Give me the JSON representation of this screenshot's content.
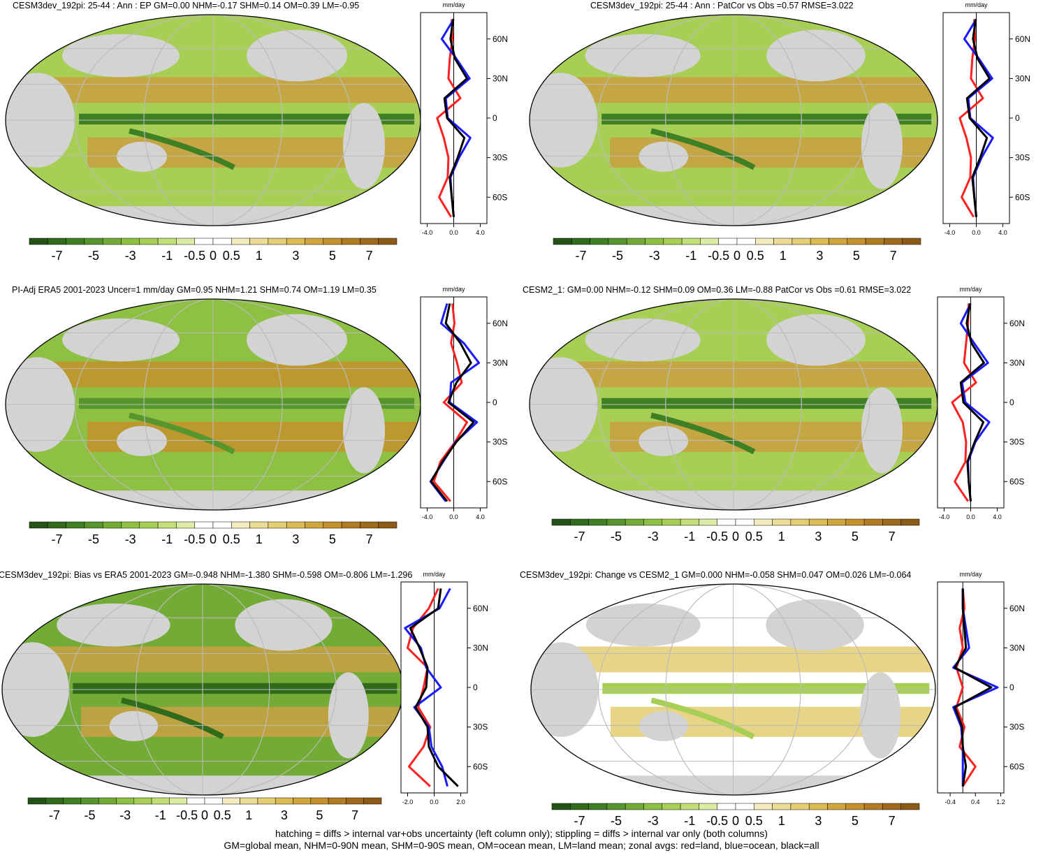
{
  "colorbar": {
    "labels": [
      "-7",
      "-5",
      "-3",
      "-1",
      "-0.5",
      "0",
      "0.5",
      "1",
      "3",
      "5",
      "7"
    ],
    "colors": [
      "#245415",
      "#2f6b1b",
      "#3f8024",
      "#57962d",
      "#73ab37",
      "#8ec043",
      "#a8cf55",
      "#c3df77",
      "#ddeca4",
      "#ffffff",
      "#ffffff",
      "#f4ecbf",
      "#ecdd96",
      "#e4cd72",
      "#dcbb52",
      "#d0a63c",
      "#c4912c",
      "#b27c22",
      "#9f6a1b",
      "#8b5a16"
    ]
  },
  "zonal_units": "mm/day",
  "lat_labels": [
    "60N",
    "30N",
    "0",
    "30S",
    "60S"
  ],
  "line_colors": {
    "land": "#ff2020",
    "ocean": "#1a1aff",
    "all": "#000000"
  },
  "panels": [
    {
      "title": "CESM3dev_192pi: 25-44 : Ann : EP GM=0.00 NHM=-0.17 SHM=0.14 OM=0.39 LM=-0.95",
      "zonal_ticks": [
        "-4.0",
        "0.0",
        "4.0"
      ],
      "chart_data": {
        "type": "line",
        "x_label": "mm/day",
        "y": [
          75,
          60,
          45,
          30,
          15,
          0,
          -15,
          -30,
          -45,
          -60,
          -75
        ],
        "xlim": [
          -5,
          5
        ],
        "series": [
          {
            "name": "land",
            "values": [
              -0.3,
              -0.2,
              -0.6,
              -0.8,
              1.0,
              -2.5,
              -1.5,
              -0.8,
              -0.9,
              -2.2,
              -0.4
            ]
          },
          {
            "name": "ocean",
            "values": [
              0,
              -1.8,
              0.4,
              2.4,
              -1.2,
              -0.9,
              2.5,
              0.8,
              -0.5,
              -0.3,
              0
            ]
          },
          {
            "name": "all",
            "values": [
              -0.1,
              -0.5,
              0.2,
              2.0,
              -1.4,
              -1.0,
              1.6,
              0.6,
              -0.6,
              -0.3,
              0
            ]
          }
        ]
      }
    },
    {
      "title": "CESM3dev_192pi: 25-44 : Ann : PatCor vs Obs =0.57 RMSE=3.022",
      "zonal_ticks": [
        "-4.0",
        "0.0",
        "4.0"
      ],
      "chart_data": {
        "type": "line",
        "x_label": "mm/day",
        "y": [
          75,
          60,
          45,
          30,
          15,
          0,
          -15,
          -30,
          -45,
          -60,
          -75
        ],
        "xlim": [
          -5,
          5
        ],
        "series": [
          {
            "name": "land",
            "values": [
              -0.3,
              -0.2,
              -0.6,
              -0.8,
              1.0,
              -2.5,
              -1.5,
              -0.8,
              -0.9,
              -2.2,
              -0.4
            ]
          },
          {
            "name": "ocean",
            "values": [
              0,
              -1.8,
              0.4,
              2.4,
              -1.2,
              -0.9,
              2.5,
              0.8,
              -0.5,
              -0.3,
              0
            ]
          },
          {
            "name": "all",
            "values": [
              -0.1,
              -0.5,
              0.2,
              2.0,
              -1.4,
              -1.0,
              1.6,
              0.6,
              -0.6,
              -0.3,
              0
            ]
          }
        ]
      }
    },
    {
      "title": "PI-Adj ERA5 2001-2023 Uncer=1 mm/day GM=0.95 NHM=1.21 SHM=0.74 OM=1.19 LM=0.35",
      "zonal_ticks": [
        "-4.0",
        "0.0",
        "4.0"
      ],
      "chart_data": {
        "type": "line",
        "x_label": "mm/day",
        "y": [
          75,
          60,
          45,
          30,
          15,
          0,
          -15,
          -30,
          -45,
          -60,
          -75
        ],
        "xlim": [
          -5,
          5
        ],
        "series": [
          {
            "name": "land",
            "values": [
              -0.2,
              0.1,
              -0.4,
              0.5,
              1.2,
              -1.5,
              2.0,
              0.2,
              -2.0,
              -3.0,
              -0.5
            ]
          },
          {
            "name": "ocean",
            "values": [
              -1.0,
              -1.9,
              1.5,
              3.8,
              -0.4,
              -0.6,
              3.5,
              0.3,
              -1.6,
              -3.5,
              -1.2
            ]
          },
          {
            "name": "all",
            "values": [
              -0.6,
              -1.2,
              1.0,
              2.6,
              0.4,
              -0.8,
              3.0,
              0.4,
              -1.7,
              -3.4,
              -1.0
            ]
          }
        ]
      }
    },
    {
      "title": "CESM2_1: GM=0.00 NHM=-0.12 SHM=0.09 OM=0.36 LM=-0.88 PatCor vs Obs =0.61 RMSE=3.022",
      "zonal_ticks": [
        "-4.0",
        "0.0",
        "4.0"
      ],
      "chart_data": {
        "type": "line",
        "x_label": "mm/day",
        "y": [
          75,
          60,
          45,
          30,
          15,
          0,
          -15,
          -30,
          -45,
          -60,
          -75
        ],
        "xlim": [
          -5,
          5
        ],
        "series": [
          {
            "name": "land",
            "values": [
              -0.3,
              -0.4,
              -0.7,
              -1.0,
              0.8,
              -2.8,
              -1.2,
              -0.7,
              -0.8,
              -2.4,
              -0.4
            ]
          },
          {
            "name": "ocean",
            "values": [
              0,
              -1.5,
              0.5,
              2.6,
              -1.3,
              -0.8,
              2.8,
              0.7,
              -0.4,
              -0.3,
              0
            ]
          },
          {
            "name": "all",
            "values": [
              -0.1,
              -0.6,
              0.1,
              2.0,
              -1.5,
              -1.1,
              1.9,
              0.6,
              -0.5,
              -0.3,
              0
            ]
          }
        ]
      }
    },
    {
      "title": "CESM3dev_192pi: Bias vs ERA5 2001-2023 GM=-0.948 NHM=-1.380 SHM=-0.598 OM=-0.806 LM=-1.296",
      "zonal_ticks": [
        "-2.0",
        "0.0",
        "2.0"
      ],
      "chart_data": {
        "type": "line",
        "x_label": "mm/day",
        "y": [
          75,
          60,
          45,
          30,
          15,
          0,
          -15,
          -30,
          -45,
          -60,
          -75
        ],
        "xlim": [
          -2.5,
          2.5
        ],
        "series": [
          {
            "name": "land",
            "values": [
              0.3,
              -0.4,
              -1.6,
              -2.0,
              -0.5,
              -0.8,
              -1.2,
              -0.3,
              -0.8,
              -1.9,
              -0.3
            ]
          },
          {
            "name": "ocean",
            "values": [
              1.2,
              0.4,
              -2.2,
              -1.0,
              -0.6,
              0.5,
              -1.5,
              -0.4,
              -0.2,
              0.6,
              1.0
            ]
          },
          {
            "name": "all",
            "values": [
              0.5,
              0.3,
              -1.8,
              -1.1,
              -0.5,
              -0.6,
              -1.4,
              -0.5,
              -0.4,
              0.3,
              1.8
            ]
          }
        ]
      }
    },
    {
      "title": "CESM3dev_192pi: Change vs CESM2_1 GM=0.000 NHM=-0.058 SHM=0.047 OM=0.026 LM=-0.064",
      "zonal_ticks": [
        "-0.4",
        "0.4",
        "1.2"
      ],
      "chart_data": {
        "type": "line",
        "x_label": "mm/day",
        "y": [
          75,
          60,
          45,
          30,
          15,
          0,
          -15,
          -30,
          -45,
          -60,
          -75
        ],
        "xlim": [
          -0.8,
          1.3
        ],
        "series": [
          {
            "name": "land",
            "values": [
              0.0,
              0.05,
              -0.1,
              0.0,
              -0.2,
              0.0,
              -0.2,
              0.05,
              -0.1,
              0.4,
              0.0
            ]
          },
          {
            "name": "ocean",
            "values": [
              0.0,
              0.0,
              0.1,
              0.2,
              -0.3,
              1.1,
              -0.3,
              -0.05,
              0.0,
              0.0,
              0.0
            ]
          },
          {
            "name": "all",
            "values": [
              0.0,
              0.0,
              0.05,
              0.1,
              -0.25,
              0.9,
              -0.25,
              -0.02,
              0.0,
              0.1,
              0.0
            ]
          }
        ]
      }
    }
  ],
  "footer": {
    "line1": "hatching = diffs > internal var+obs uncertainty (left column only); stippling = diffs > internal var only (both columns)",
    "line2": "GM=global mean, NHM=0-90N mean, SHM=0-90S mean, OM=ocean mean, LM=land mean; zonal avgs: red=land, blue=ocean, black=all"
  }
}
